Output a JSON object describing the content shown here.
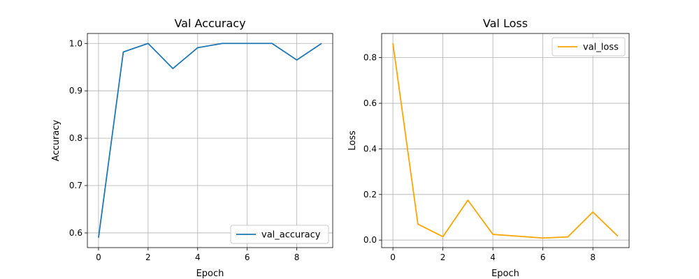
{
  "chart_data": [
    {
      "type": "line",
      "title": "Val Accuracy",
      "xlabel": "Epoch",
      "ylabel": "Accuracy",
      "xlim": [
        -0.45,
        9.45
      ],
      "ylim": [
        0.569,
        1.021
      ],
      "xticks": [
        0,
        2,
        4,
        6,
        8
      ],
      "yticks": [
        0.6,
        0.7,
        0.8,
        0.9,
        1.0
      ],
      "ytick_labels": [
        "0.6",
        "0.7",
        "0.8",
        "0.9",
        "1.0"
      ],
      "grid": true,
      "legend_position": "lower-right",
      "series": [
        {
          "name": "val_accuracy",
          "color": "#1f77b4",
          "x": [
            0,
            1,
            2,
            3,
            4,
            5,
            6,
            7,
            8,
            9
          ],
          "y": [
            0.59,
            0.982,
            1.0,
            0.947,
            0.991,
            1.0,
            1.0,
            1.0,
            0.965,
            1.0
          ]
        }
      ]
    },
    {
      "type": "line",
      "title": "Val Loss",
      "xlabel": "Epoch",
      "ylabel": "Loss",
      "xlim": [
        -0.45,
        9.45
      ],
      "ylim": [
        -0.033,
        0.906
      ],
      "xticks": [
        0,
        2,
        4,
        6,
        8
      ],
      "yticks": [
        0.0,
        0.2,
        0.4,
        0.6,
        0.8
      ],
      "ytick_labels": [
        "0.0",
        "0.2",
        "0.4",
        "0.6",
        "0.8"
      ],
      "grid": true,
      "legend_position": "upper-right",
      "series": [
        {
          "name": "val_loss",
          "color": "#ffa500",
          "x": [
            0,
            1,
            2,
            3,
            4,
            5,
            6,
            7,
            8,
            9
          ],
          "y": [
            0.863,
            0.07,
            0.015,
            0.175,
            0.025,
            0.017,
            0.009,
            0.014,
            0.123,
            0.017
          ]
        }
      ]
    }
  ]
}
